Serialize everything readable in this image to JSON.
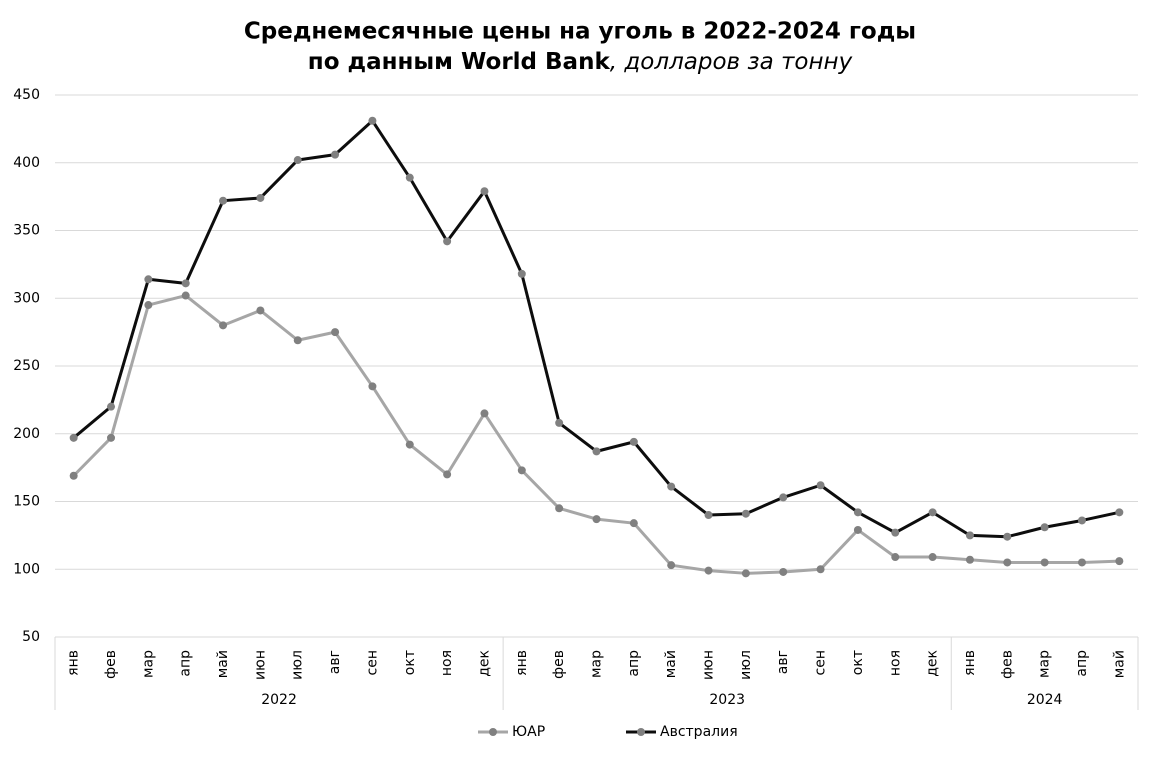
{
  "chart_data": {
    "type": "line",
    "title": "Среднемесячные цены на уголь в 2022-2024 годы",
    "subtitle": "по данным World Bank",
    "subtitle_note": ", долларов за тонну",
    "categories": [
      "янв",
      "фев",
      "мар",
      "апр",
      "май",
      "июн",
      "июл",
      "авг",
      "сен",
      "окт",
      "ноя",
      "дек",
      "янв",
      "фев",
      "мар",
      "апр",
      "май",
      "июн",
      "июл",
      "авг",
      "сен",
      "окт",
      "ноя",
      "дек",
      "янв",
      "фев",
      "мар",
      "апр",
      "май"
    ],
    "category_groups": [
      {
        "label": "2022",
        "size": 12
      },
      {
        "label": "2023",
        "size": 12
      },
      {
        "label": "2024",
        "size": 5
      }
    ],
    "series": [
      {
        "name": "ЮАР",
        "color": "#a6a6a6",
        "marker_color": "#808080",
        "values": [
          169,
          197,
          295,
          302,
          280,
          291,
          269,
          275,
          235,
          192,
          170,
          215,
          173,
          145,
          137,
          134,
          103,
          99,
          97,
          98,
          100,
          129,
          109,
          109,
          107,
          105,
          105,
          105,
          106
        ]
      },
      {
        "name": "Австралия",
        "color": "#0d0d0d",
        "marker_color": "#808080",
        "values": [
          197,
          220,
          314,
          311,
          372,
          374,
          402,
          406,
          431,
          389,
          342,
          379,
          318,
          208,
          187,
          194,
          161,
          140,
          141,
          153,
          162,
          142,
          127,
          142,
          125,
          124,
          131,
          136,
          142
        ]
      }
    ],
    "ylim": [
      50,
      450
    ],
    "yticks": [
      50,
      100,
      150,
      200,
      250,
      300,
      350,
      400,
      450
    ],
    "grid": true,
    "legend": "bottom"
  }
}
